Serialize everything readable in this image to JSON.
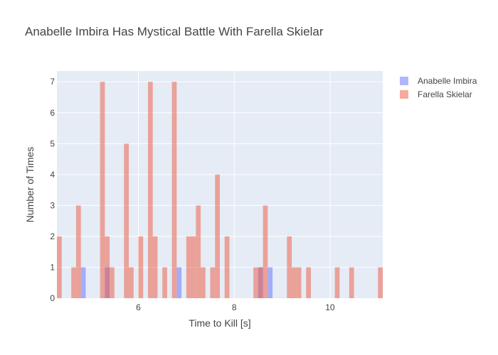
{
  "chart_data": {
    "type": "bar",
    "title": "Anabelle Imbira Has Mystical Battle With Farella Skielar",
    "xlabel": "Time to Kill [s]",
    "ylabel": "Number of Times",
    "xlim": [
      4.3,
      11.1
    ],
    "ylim": [
      0,
      7.35
    ],
    "xticks": [
      6,
      8,
      10
    ],
    "yticks": [
      0,
      1,
      2,
      3,
      4,
      5,
      6,
      7
    ],
    "bin_width": 0.1,
    "grid": true,
    "legend_position": "top-right",
    "series": [
      {
        "name": "Anabelle Imbira",
        "color": "#636efa",
        "opacity": 0.5,
        "bins": [
          {
            "x": 4.8,
            "y": 1
          },
          {
            "x": 5.3,
            "y": 1
          },
          {
            "x": 6.8,
            "y": 1
          },
          {
            "x": 8.5,
            "y": 1
          },
          {
            "x": 8.7,
            "y": 1
          }
        ]
      },
      {
        "name": "Farella Skielar",
        "color": "#ef553b",
        "opacity": 0.5,
        "bins": [
          {
            "x": 4.3,
            "y": 2
          },
          {
            "x": 4.6,
            "y": 1
          },
          {
            "x": 4.7,
            "y": 3
          },
          {
            "x": 5.2,
            "y": 7
          },
          {
            "x": 5.3,
            "y": 2
          },
          {
            "x": 5.4,
            "y": 1
          },
          {
            "x": 5.7,
            "y": 5
          },
          {
            "x": 5.8,
            "y": 1
          },
          {
            "x": 6.0,
            "y": 2
          },
          {
            "x": 6.2,
            "y": 7
          },
          {
            "x": 6.3,
            "y": 2
          },
          {
            "x": 6.5,
            "y": 1
          },
          {
            "x": 6.7,
            "y": 7
          },
          {
            "x": 7.0,
            "y": 2
          },
          {
            "x": 7.1,
            "y": 2
          },
          {
            "x": 7.2,
            "y": 3
          },
          {
            "x": 7.3,
            "y": 1
          },
          {
            "x": 7.5,
            "y": 1
          },
          {
            "x": 7.6,
            "y": 4
          },
          {
            "x": 7.8,
            "y": 2
          },
          {
            "x": 8.4,
            "y": 1
          },
          {
            "x": 8.5,
            "y": 1
          },
          {
            "x": 8.6,
            "y": 3
          },
          {
            "x": 9.1,
            "y": 2
          },
          {
            "x": 9.2,
            "y": 1
          },
          {
            "x": 9.3,
            "y": 1
          },
          {
            "x": 9.5,
            "y": 1
          },
          {
            "x": 10.1,
            "y": 1
          },
          {
            "x": 10.4,
            "y": 1
          },
          {
            "x": 11.0,
            "y": 1
          }
        ]
      }
    ]
  }
}
